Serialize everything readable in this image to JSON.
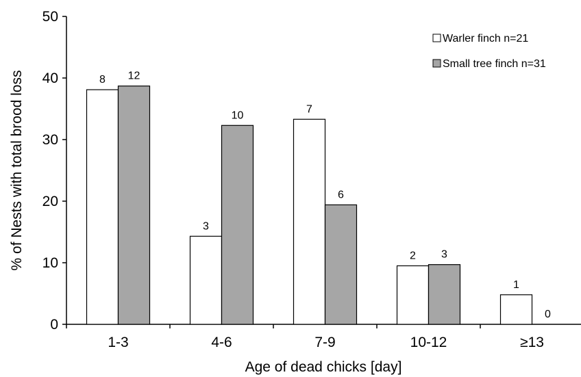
{
  "chart_data": {
    "type": "bar",
    "categories": [
      "1-3",
      "4-6",
      "7-9",
      "10-12",
      "≥13"
    ],
    "series": [
      {
        "name": "Warler finch n=21",
        "color": "#ffffff",
        "values": [
          38.1,
          14.3,
          33.3,
          9.5,
          4.8
        ],
        "labels": [
          "8",
          "3",
          "7",
          "2",
          "1"
        ]
      },
      {
        "name": "Small tree finch n=31",
        "color": "#a6a6a6",
        "values": [
          38.7,
          32.3,
          19.4,
          9.7,
          0
        ],
        "labels": [
          "12",
          "10",
          "6",
          "3",
          "0"
        ]
      }
    ],
    "xlabel": "Age of dead chicks [day]",
    "ylabel": "% of Nests with total brood loss",
    "ylim": [
      0,
      50
    ],
    "yticks": [
      0,
      10,
      20,
      30,
      40,
      50
    ],
    "grid": false,
    "legend_position": "top-right"
  }
}
